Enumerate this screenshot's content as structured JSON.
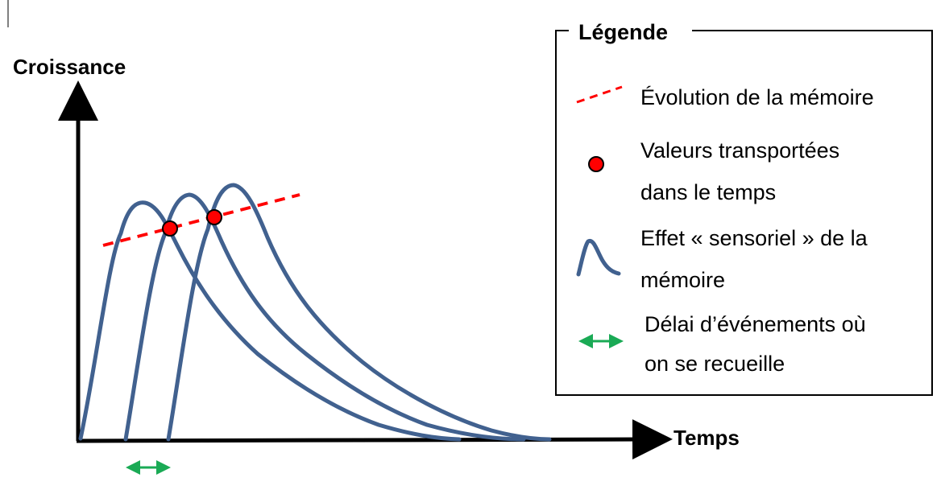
{
  "axes": {
    "y_label": "Croissance",
    "x_label": "Temps"
  },
  "legend": {
    "title": "Légende",
    "items": [
      {
        "icon": "red-dashed-line-icon",
        "lines": [
          "Évolution de la mémoire"
        ]
      },
      {
        "icon": "red-dot-icon",
        "lines": [
          "Valeurs transportées",
          "dans le temps"
        ]
      },
      {
        "icon": "blue-peak-curve-icon",
        "lines": [
          "Effet « sensoriel » de la",
          "mémoire"
        ]
      },
      {
        "icon": "green-double-arrow-icon",
        "lines": [
          "Délai d’événements où",
          "on se recueille"
        ]
      }
    ]
  },
  "colors": {
    "curve": "#41618f",
    "memory_line": "#ff0000",
    "dot_fill": "#ff0000",
    "arrow": "#1aaa55",
    "axis": "#000000"
  }
}
